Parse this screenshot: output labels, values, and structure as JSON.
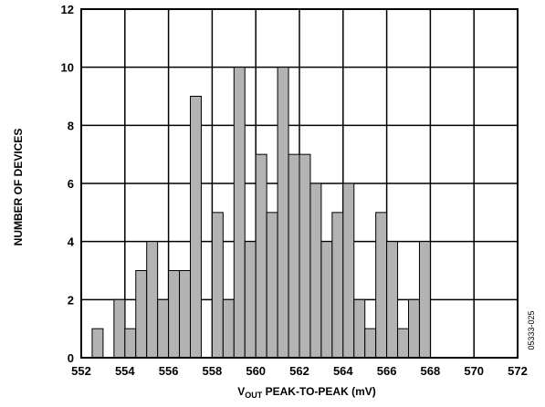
{
  "chart_data": {
    "type": "bar",
    "title": "",
    "xlabel_main": "V",
    "xlabel_sub": "OUT",
    "xlabel_rest": " PEAK-TO-PEAK (mV)",
    "ylabel": "NUMBER OF DEVICES",
    "xlim": [
      552,
      572
    ],
    "ylim": [
      0,
      12
    ],
    "xticks": [
      "552",
      "554",
      "556",
      "558",
      "560",
      "562",
      "564",
      "566",
      "568",
      "570",
      "572"
    ],
    "yticks": [
      "0",
      "2",
      "4",
      "6",
      "8",
      "10",
      "12"
    ],
    "bin_width": 0.5,
    "bar_color": "#b3b3b3",
    "grid": true,
    "figure_code": "05333-025",
    "bins": [
      {
        "x": 552.5,
        "count": 1
      },
      {
        "x": 553.5,
        "count": 2
      },
      {
        "x": 554.0,
        "count": 1
      },
      {
        "x": 554.5,
        "count": 3
      },
      {
        "x": 555.0,
        "count": 4
      },
      {
        "x": 555.5,
        "count": 2
      },
      {
        "x": 556.0,
        "count": 3
      },
      {
        "x": 556.5,
        "count": 3
      },
      {
        "x": 557.0,
        "count": 9
      },
      {
        "x": 558.0,
        "count": 5
      },
      {
        "x": 558.5,
        "count": 2
      },
      {
        "x": 559.0,
        "count": 10
      },
      {
        "x": 559.5,
        "count": 4
      },
      {
        "x": 560.0,
        "count": 7
      },
      {
        "x": 560.5,
        "count": 5
      },
      {
        "x": 561.0,
        "count": 10
      },
      {
        "x": 561.5,
        "count": 7
      },
      {
        "x": 562.0,
        "count": 7
      },
      {
        "x": 562.5,
        "count": 6
      },
      {
        "x": 563.0,
        "count": 4
      },
      {
        "x": 563.5,
        "count": 5
      },
      {
        "x": 564.0,
        "count": 6
      },
      {
        "x": 564.5,
        "count": 2
      },
      {
        "x": 565.0,
        "count": 1
      },
      {
        "x": 565.5,
        "count": 5
      },
      {
        "x": 566.0,
        "count": 4
      },
      {
        "x": 566.5,
        "count": 1
      },
      {
        "x": 567.0,
        "count": 2
      },
      {
        "x": 567.5,
        "count": 4
      }
    ]
  }
}
